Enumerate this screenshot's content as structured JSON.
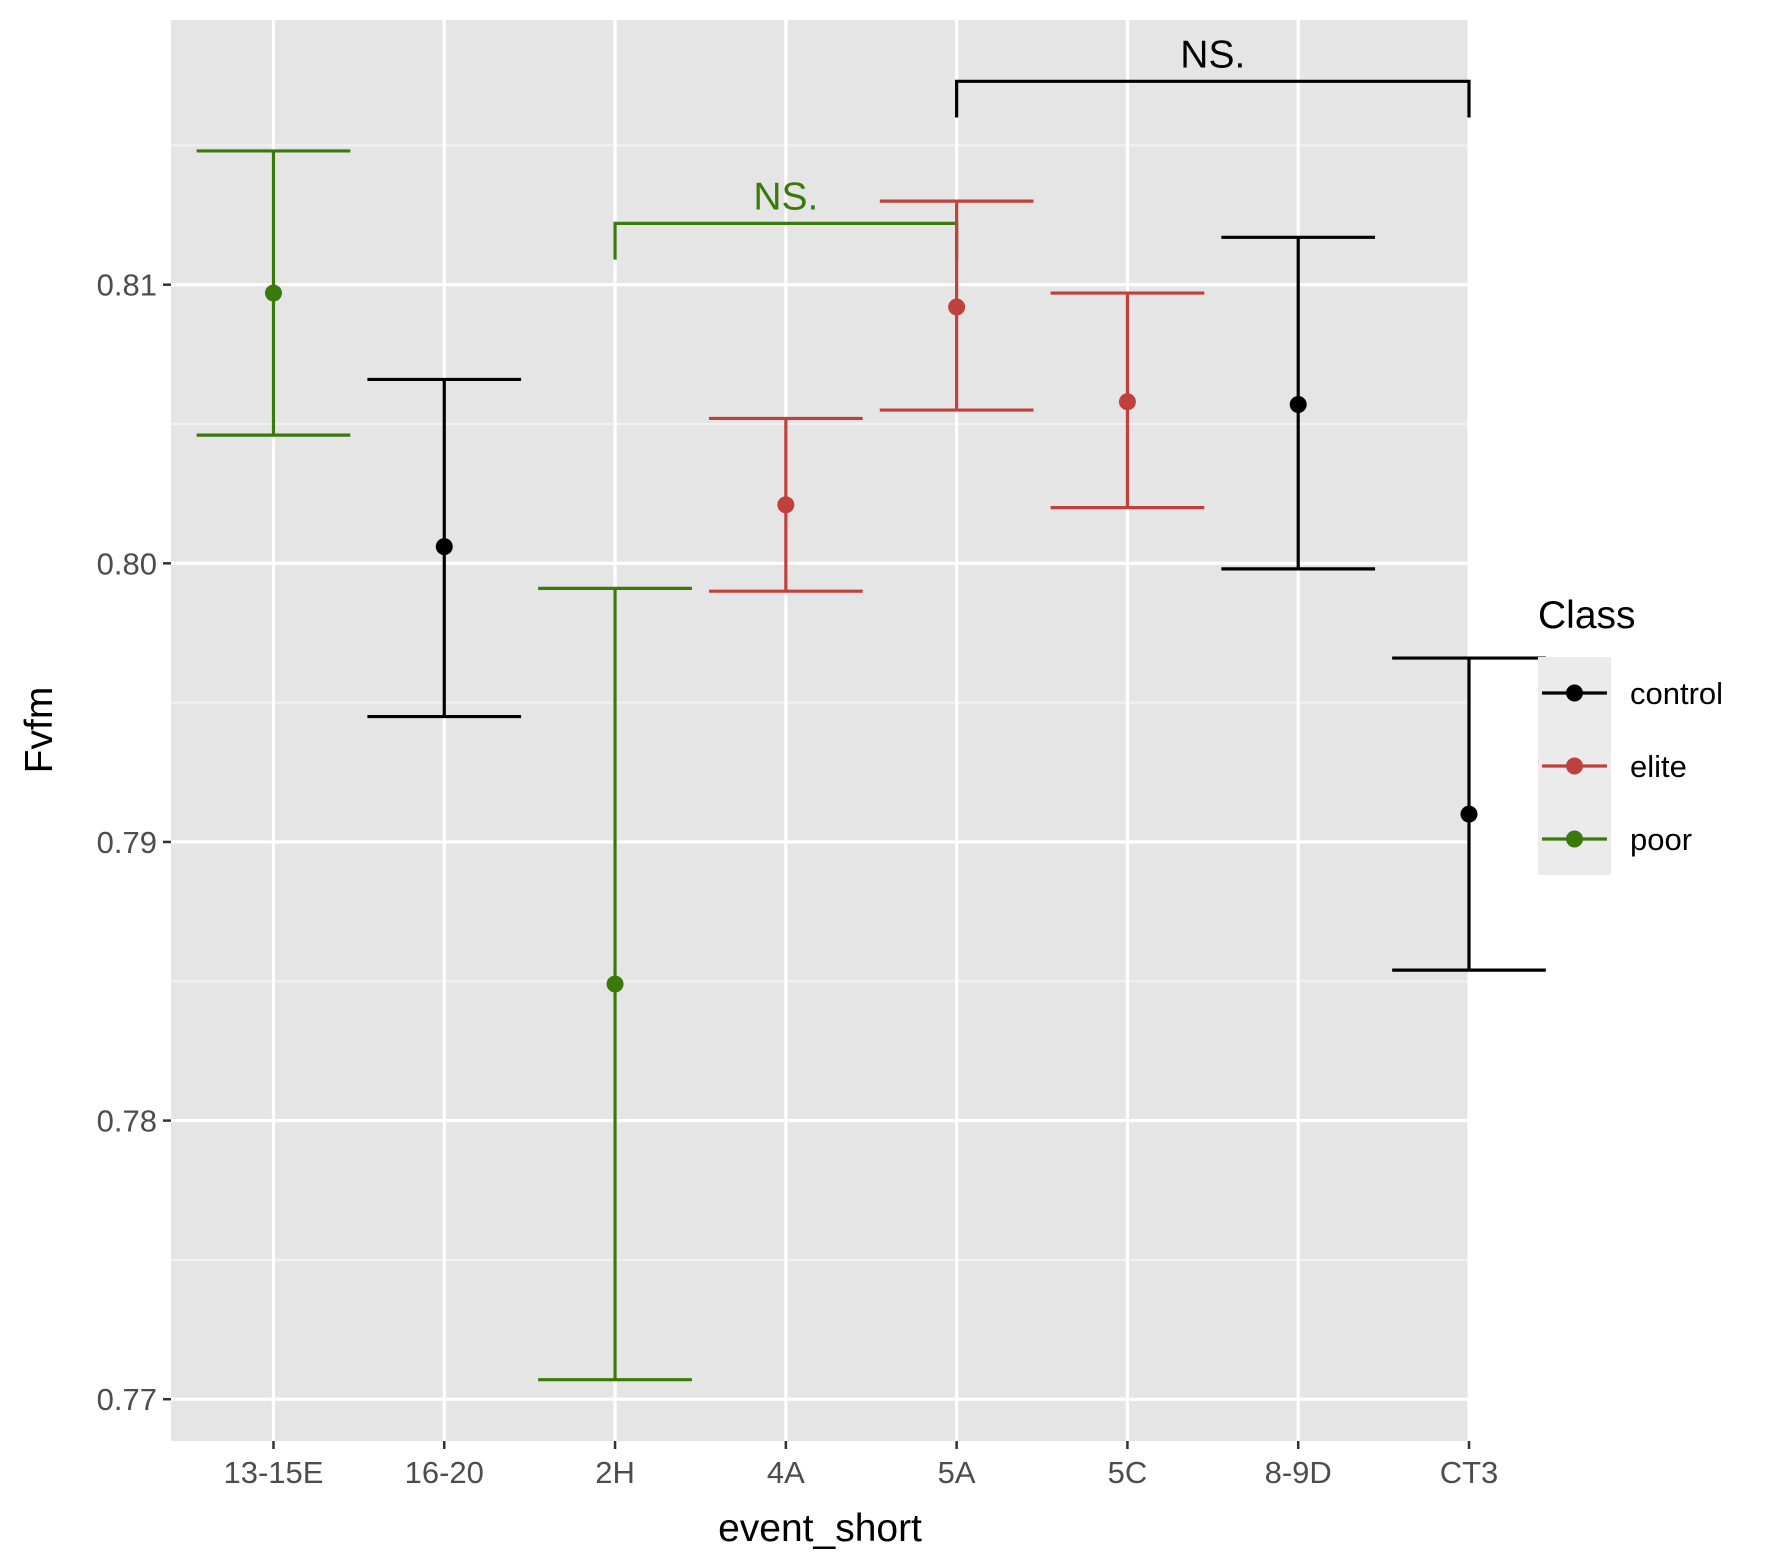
{
  "chart_data": {
    "type": "errorbar",
    "xlabel": "event_short",
    "ylabel": "Fvfm",
    "ylim": [
      0.7685,
      0.8195
    ],
    "yticks": [
      0.77,
      0.78,
      0.79,
      0.8,
      0.81
    ],
    "ytick_labels": [
      "0.77",
      "0.78",
      "0.79",
      "0.80",
      "0.81"
    ],
    "grid": true,
    "categories": [
      "13-15E",
      "16-20",
      "2H",
      "4A",
      "5A",
      "5C",
      "8-9D",
      "CT3"
    ],
    "points": [
      {
        "category": "13-15E",
        "class": "poor",
        "mean": 0.8097,
        "lower": 0.8046,
        "upper": 0.8148
      },
      {
        "category": "16-20",
        "class": "control",
        "mean": 0.8006,
        "lower": 0.7945,
        "upper": 0.8066
      },
      {
        "category": "2H",
        "class": "poor",
        "mean": 0.7849,
        "lower": 0.7707,
        "upper": 0.7991
      },
      {
        "category": "4A",
        "class": "elite",
        "mean": 0.8021,
        "lower": 0.799,
        "upper": 0.8052
      },
      {
        "category": "5A",
        "class": "elite",
        "mean": 0.8092,
        "lower": 0.8055,
        "upper": 0.813
      },
      {
        "category": "5C",
        "class": "elite",
        "mean": 0.8058,
        "lower": 0.802,
        "upper": 0.8097
      },
      {
        "category": "8-9D",
        "class": "control",
        "mean": 0.8057,
        "lower": 0.7998,
        "upper": 0.8117
      },
      {
        "category": "CT3",
        "class": "control",
        "mean": 0.791,
        "lower": 0.7854,
        "upper": 0.7966
      }
    ],
    "legend": {
      "title": "Class",
      "placement": "right",
      "entries": [
        {
          "name": "control",
          "color": "#000000"
        },
        {
          "name": "elite",
          "color": "#c1403d"
        },
        {
          "name": "poor",
          "color": "#3a7a0b"
        }
      ]
    },
    "annotations": [
      {
        "text": "NS.",
        "from": "2H",
        "to": "5A",
        "bracket_y": 0.8122,
        "tip_y": 0.8109,
        "color": "#3a7a0b"
      },
      {
        "text": "NS.",
        "from": "5A",
        "to": "CT3",
        "bracket_y": 0.8173,
        "tip_y": 0.816,
        "color": "#000000"
      }
    ]
  }
}
